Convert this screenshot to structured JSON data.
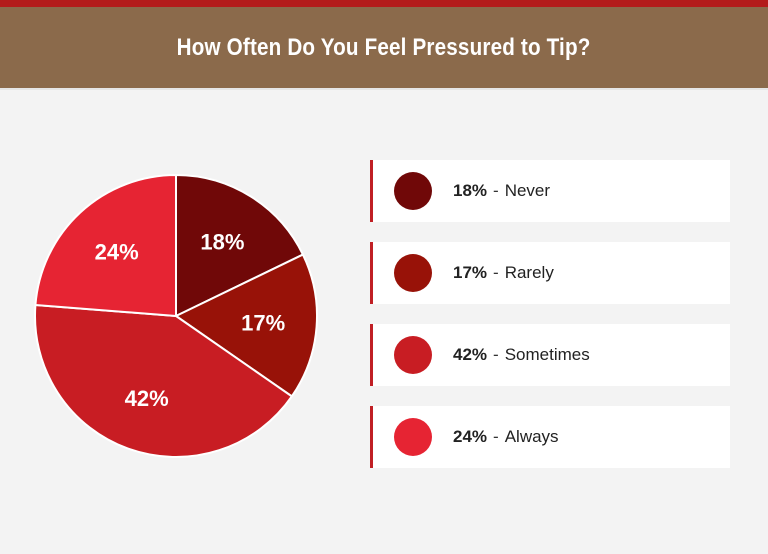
{
  "header": {
    "title": "How Often Do You Feel Pressured to Tip?"
  },
  "colors": {
    "top_stripe": "#b31b1b",
    "header_bg": "#8b6a4b",
    "background": "#f3f3f3",
    "legend_border": "#c01f24"
  },
  "chart_data": {
    "type": "pie",
    "title": "How Often Do You Feel Pressured to Tip?",
    "slices": [
      {
        "label": "Never",
        "value": 18,
        "display": "18%",
        "color": "#700808"
      },
      {
        "label": "Rarely",
        "value": 17,
        "display": "17%",
        "color": "#981208"
      },
      {
        "label": "Sometimes",
        "value": 42,
        "display": "42%",
        "color": "#c81d23"
      },
      {
        "label": "Always",
        "value": 24,
        "display": "24%",
        "color": "#e62433"
      }
    ],
    "legend_position": "right",
    "start_angle": "top, clockwise"
  },
  "legend": {
    "items": [
      {
        "pct": "18%",
        "sep": "-",
        "label": "Never"
      },
      {
        "pct": "17%",
        "sep": "-",
        "label": "Rarely"
      },
      {
        "pct": "42%",
        "sep": "-",
        "label": "Sometimes"
      },
      {
        "pct": "24%",
        "sep": "-",
        "label": "Always"
      }
    ]
  }
}
